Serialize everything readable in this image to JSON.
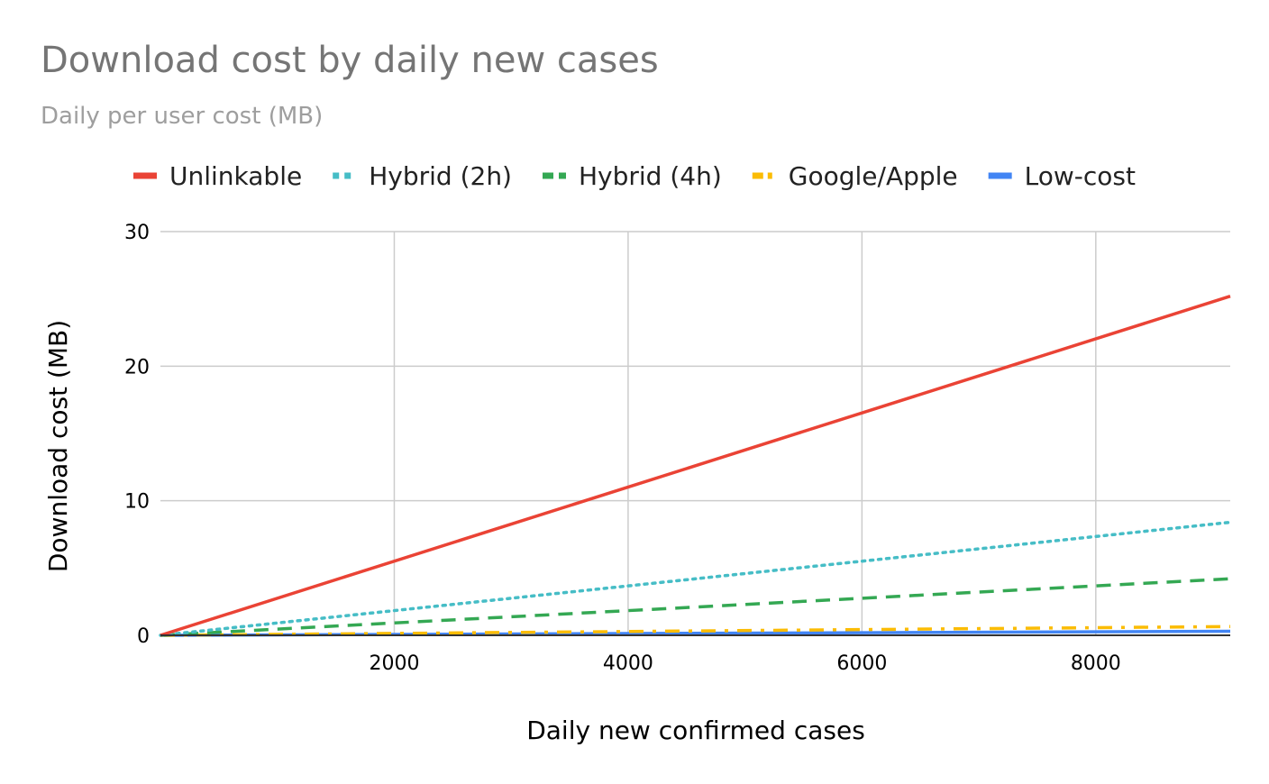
{
  "chart_data": {
    "type": "line",
    "title": "Download cost by daily new cases",
    "subtitle": "Daily per user cost (MB)",
    "xlabel": "Daily new confirmed cases",
    "ylabel": "Download cost (MB)",
    "xlim": [
      0,
      9150
    ],
    "ylim": [
      0,
      30
    ],
    "x_ticks": [
      2000,
      4000,
      6000,
      8000
    ],
    "y_ticks": [
      0,
      10,
      20,
      30
    ],
    "grid": true,
    "legend_position": "top",
    "x": [
      0,
      9150
    ],
    "series": [
      {
        "name": "Unlinkable",
        "color": "#ea4335",
        "style": "solid",
        "values": [
          0,
          25.2
        ]
      },
      {
        "name": "Hybrid (2h)",
        "color": "#46bdc6",
        "style": "dotted",
        "values": [
          0,
          8.4
        ]
      },
      {
        "name": "Hybrid (4h)",
        "color": "#34a853",
        "style": "dashed",
        "values": [
          0,
          4.2
        ]
      },
      {
        "name": "Google/Apple",
        "color": "#fbbc04",
        "style": "dashdot",
        "values": [
          0,
          0.65
        ]
      },
      {
        "name": "Low-cost",
        "color": "#4285f4",
        "style": "solid",
        "values": [
          0,
          0.3
        ]
      }
    ]
  }
}
